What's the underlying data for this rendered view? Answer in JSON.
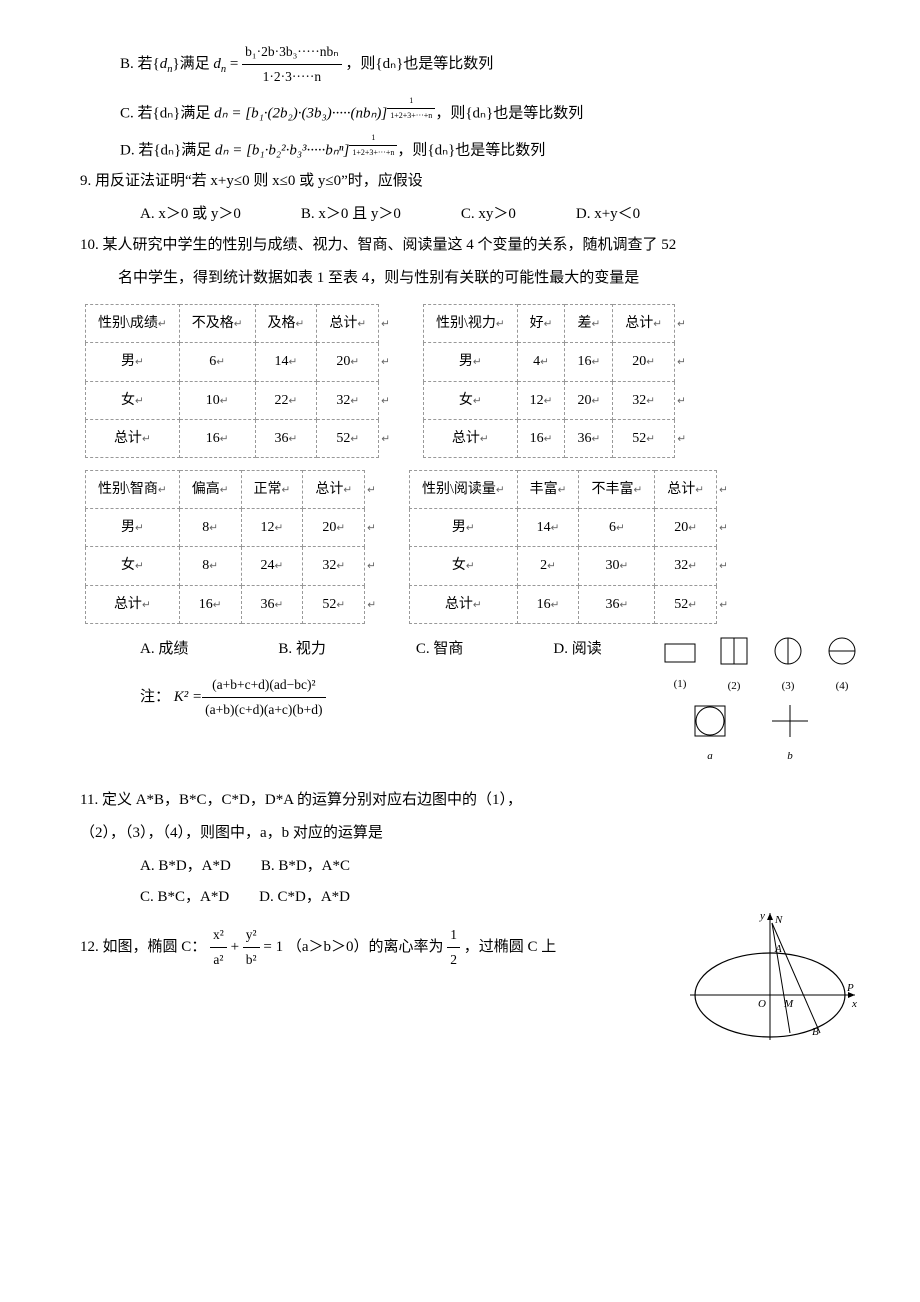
{
  "q8": {
    "B": {
      "prefix": "B. 若{",
      "dn": "d",
      "sub": "n",
      "mid": "}满足 ",
      "eq_left": "d",
      "eq_sub": "n",
      "frac_num": "b₁·2b·3b₃·····nbₙ",
      "frac_den": "1·2·3·····n",
      "tail": " ，则{dₙ}也是等比数列"
    },
    "C": {
      "prefix": "C. 若{dₙ}满足 ",
      "eq": "dₙ = [b₁·(2b₂)·(3b₃)·····(nbₙ)]",
      "exp_num": "1",
      "exp_den": "1+2+3+···+n",
      "tail": "，则{dₙ}也是等比数列"
    },
    "D": {
      "prefix": "D. 若{dₙ}满足 ",
      "eq": "dₙ = [b₁·b₂²·b₃³·····bₙⁿ]",
      "exp_num": "1",
      "exp_den": "1+2+3+···+n",
      "tail": "，则{dₙ}也是等比数列"
    }
  },
  "q9": {
    "text": "9.  用反证法证明“若 x+y≤0 则 x≤0 或 y≤0”时，应假设",
    "A": "A. x＞0 或 y＞0",
    "B": "B. x＞0 且 y＞0",
    "C": "C. xy＞0",
    "D": "D. x+y＜0"
  },
  "q10": {
    "line1": "10. 某人研究中学生的性别与成绩、视力、智商、阅读量这 4 个变量的关系，随机调查了 52",
    "line2": "名中学生，得到统计数据如表 1 至表 4，则与性别有关联的可能性最大的变量是",
    "tables": [
      {
        "h": [
          "性别\\成绩",
          "不及格",
          "及格",
          "总计"
        ],
        "r": [
          [
            "男",
            "6",
            "14",
            "20"
          ],
          [
            "女",
            "10",
            "22",
            "32"
          ],
          [
            "总计",
            "16",
            "36",
            "52"
          ]
        ]
      },
      {
        "h": [
          "性别\\视力",
          "好",
          "差",
          "总计"
        ],
        "r": [
          [
            "男",
            "4",
            "16",
            "20"
          ],
          [
            "女",
            "12",
            "20",
            "32"
          ],
          [
            "总计",
            "16",
            "36",
            "52"
          ]
        ]
      },
      {
        "h": [
          "性别\\智商",
          "偏高",
          "正常",
          "总计"
        ],
        "r": [
          [
            "男",
            "8",
            "12",
            "20"
          ],
          [
            "女",
            "8",
            "24",
            "32"
          ],
          [
            "总计",
            "16",
            "36",
            "52"
          ]
        ]
      },
      {
        "h": [
          "性别\\阅读量",
          "丰富",
          "不丰富",
          "总计"
        ],
        "r": [
          [
            "男",
            "14",
            "6",
            "20"
          ],
          [
            "女",
            "2",
            "30",
            "32"
          ],
          [
            "总计",
            "16",
            "36",
            "52"
          ]
        ]
      }
    ],
    "choices": {
      "A": "A. 成绩",
      "B": "B. 视力",
      "C": "C. 智商",
      "D": "D. 阅读"
    },
    "note_label": "注：",
    "k2_left": "K² = ",
    "k2_num": "(a+b+c+d)(ad−bc)²",
    "k2_den": "(a+b)(c+d)(a+c)(b+d)"
  },
  "q11": {
    "line1": "11. 定义 A*B，B*C，C*D，D*A 的运算分别对应右边图中的（1），",
    "line2": "（2），（3），（4），则图中，a，b 对应的运算是",
    "opts": {
      "row1": "A. B*D，A*D　　B. B*D，A*C",
      "row2": "C. B*C，A*D　　D. C*D，A*D"
    },
    "shape_labels": {
      "s1": "(1)",
      "s2": "(2)",
      "s3": "(3)",
      "s4": "(4)",
      "sa": "a",
      "sb": "b"
    }
  },
  "q12": {
    "prefix": "12. 如图，椭圆 C：",
    "frac1_num": "x²",
    "frac1_den": "a²",
    "plus": " + ",
    "frac2_num": "y²",
    "frac2_den": "b²",
    "eq": " = 1 （a＞b＞0）的离心率为 ",
    "ecc_num": "1",
    "ecc_den": "2",
    "tail": " ，过椭圆 C 上",
    "fig_labels": {
      "N": "N",
      "A": "A",
      "P": "P",
      "x": "x",
      "y": "y",
      "O": "O",
      "M": "M",
      "B": "B"
    }
  },
  "phon_marker": "↵"
}
